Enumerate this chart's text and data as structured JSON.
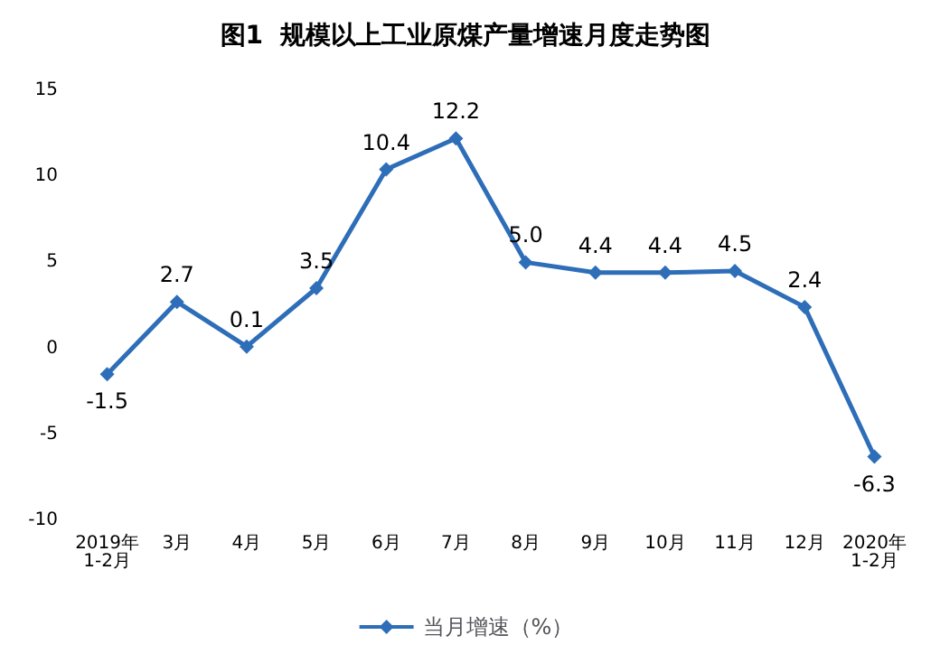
{
  "chart_data": {
    "type": "line",
    "title": "图1  规模以上工业原煤产量增速月度走势图",
    "categories": [
      "2019年\n1-2月",
      "3月",
      "4月",
      "5月",
      "6月",
      "7月",
      "8月",
      "9月",
      "10月",
      "11月",
      "12月",
      "2020年\n1-2月"
    ],
    "series": [
      {
        "name": "当月增速（%）",
        "color": "#2e6eb8",
        "values": [
          -1.5,
          2.7,
          0.1,
          3.5,
          10.4,
          12.2,
          5.0,
          4.4,
          4.4,
          4.5,
          2.4,
          -6.3
        ],
        "value_labels": [
          "-1.5",
          "2.7",
          "0.1",
          "3.5",
          "10.4",
          "12.2",
          "5.0",
          "4.4",
          "4.4",
          "4.5",
          "2.4",
          "-6.3"
        ]
      }
    ],
    "ylim": [
      -10,
      15
    ],
    "yticks": [
      -10,
      -5,
      0,
      5,
      10,
      15
    ],
    "grid": false,
    "legend": "bottom",
    "marker": "diamond",
    "line_style": "solid",
    "data_labels": true
  }
}
